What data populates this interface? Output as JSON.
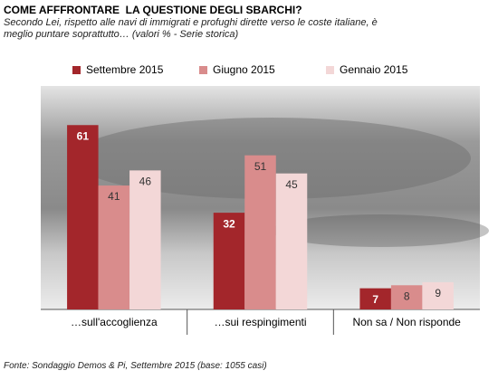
{
  "chart_data": {
    "type": "bar",
    "title": "COME AFFFRONTARE  LA QUESTIONE DEGLI SBARCHI?",
    "subtitle": "Secondo Lei, rispetto alle navi di immigrati e profughi dirette verso le coste italiane, è meglio puntare soprattutto… (valori % - Serie storica)",
    "categories": [
      "…sull'accoglienza",
      "…sui respingimenti",
      "Non sa / Non risponde"
    ],
    "series": [
      {
        "name": "Settembre 2015",
        "color": "#a3262b",
        "values": [
          61,
          32,
          7
        ]
      },
      {
        "name": "Giugno 2015",
        "color": "#d98c8c",
        "values": [
          41,
          51,
          8
        ]
      },
      {
        "name": "Gennaio 2015",
        "color": "#f3d7d7",
        "values": [
          46,
          45,
          9
        ]
      }
    ],
    "source": "Fonte: Sondaggio Demos & Pi, Settembre 2015 (base: 1055 casi)"
  }
}
